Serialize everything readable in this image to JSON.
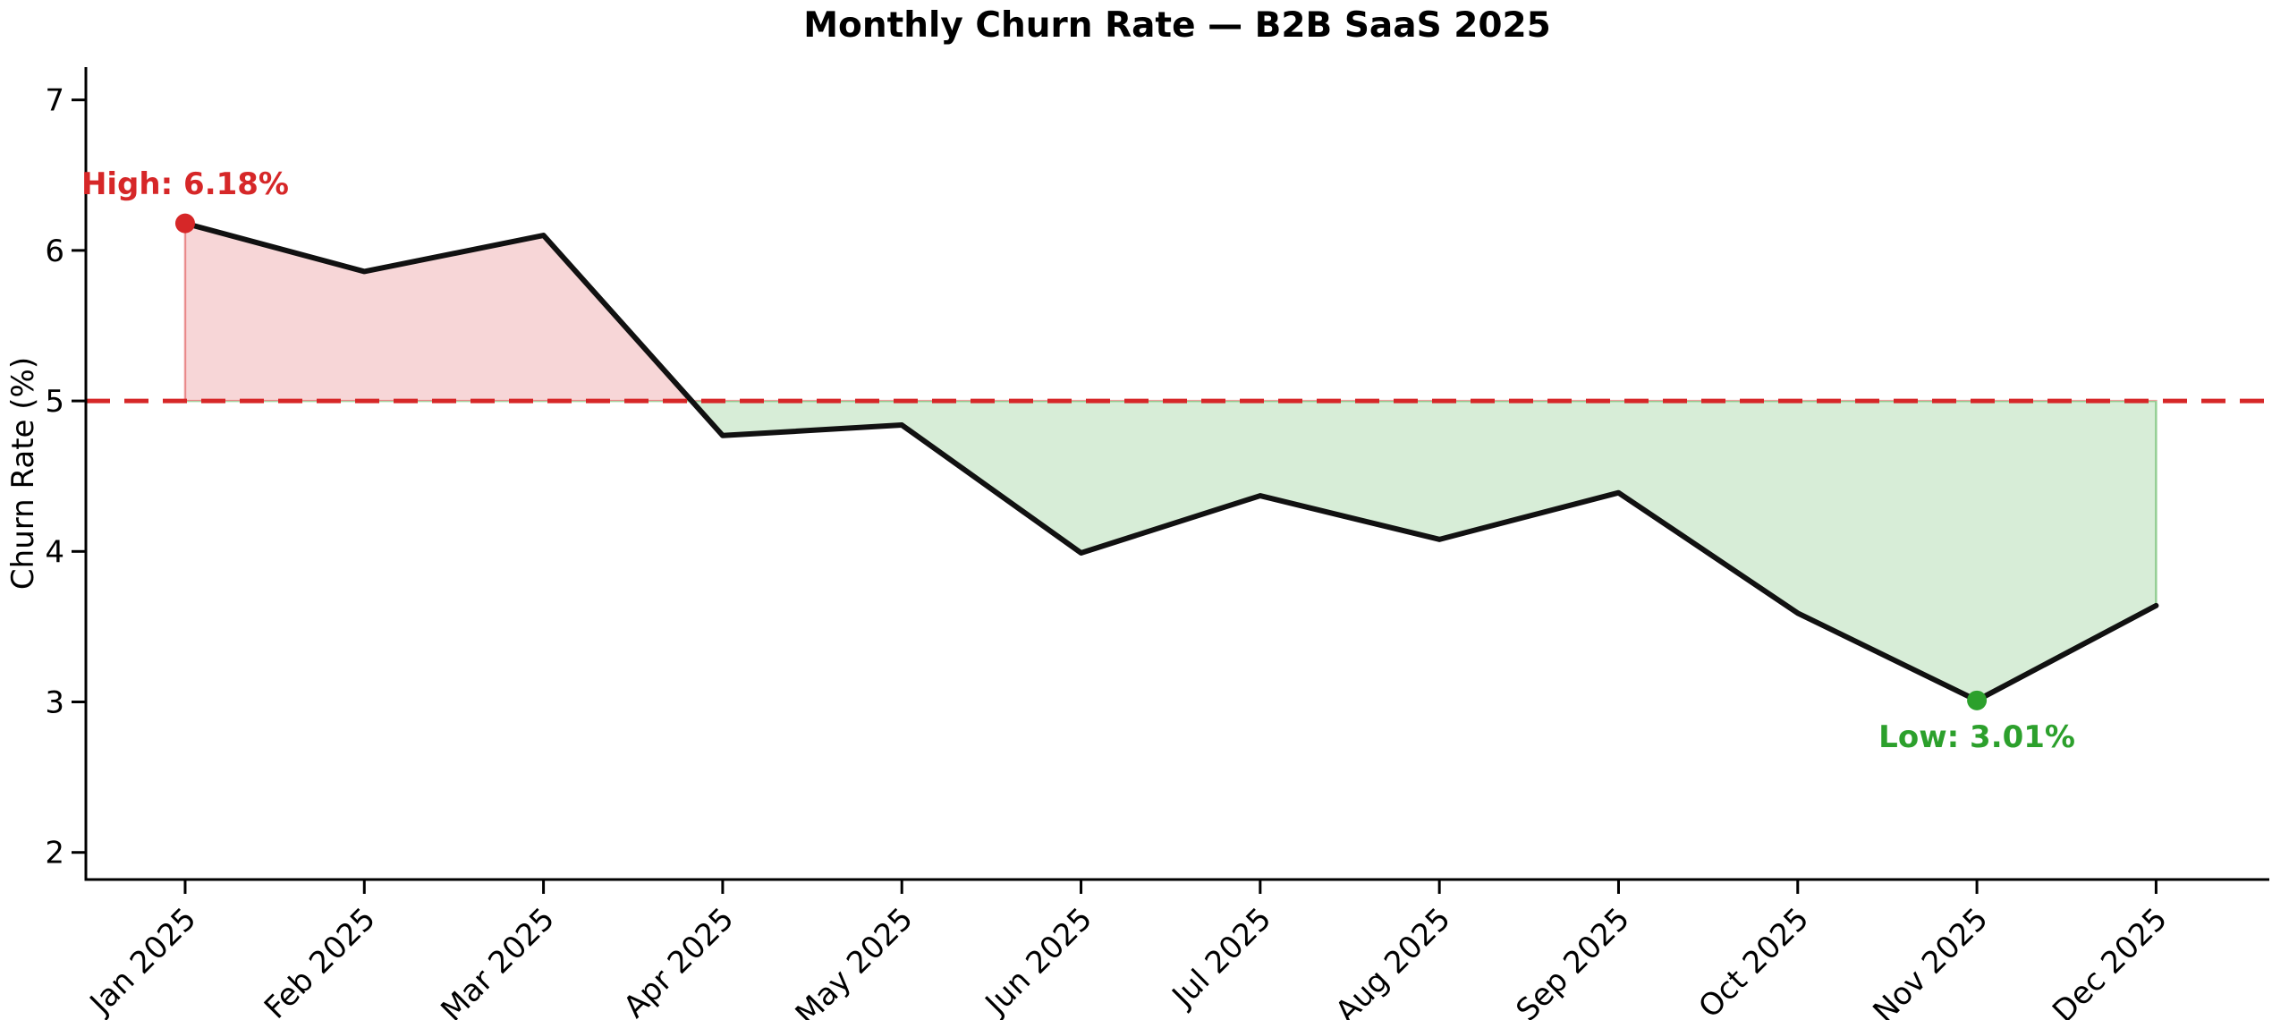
{
  "title": "Monthly Churn Rate — B2B SaaS 2025",
  "chart_data": {
    "type": "line",
    "title": "Monthly Churn Rate — B2B SaaS 2025",
    "xlabel": "",
    "ylabel": "Churn Rate (%)",
    "categories": [
      "Jan 2025",
      "Feb 2025",
      "Mar 2025",
      "Apr 2025",
      "May 2025",
      "Jun 2025",
      "Jul 2025",
      "Aug 2025",
      "Sep 2025",
      "Oct 2025",
      "Nov 2025",
      "Dec 2025"
    ],
    "values": [
      6.18,
      5.86,
      6.1,
      4.77,
      4.84,
      3.99,
      4.37,
      4.08,
      4.39,
      3.59,
      3.01,
      3.64
    ],
    "threshold": 5.0,
    "y_ticks": [
      2,
      3,
      4,
      5,
      6,
      7
    ],
    "ylim": [
      1.82,
      7.218
    ],
    "xlim": [
      -0.554,
      11.632
    ],
    "grid": false,
    "legend": false,
    "annotations": {
      "high": {
        "label": "High: 6.18%",
        "index": 0,
        "value": 6.18,
        "color": "#d62728"
      },
      "low": {
        "label": "Low: 3.01%",
        "index": 10,
        "value": 3.01,
        "color": "#2ca02c"
      }
    },
    "colors": {
      "line": "#111111",
      "threshold_line": "#d62728",
      "above_fill": "#d62728",
      "below_fill": "#2ca02c",
      "high_marker": "#d62728",
      "low_marker": "#2ca02c"
    }
  }
}
